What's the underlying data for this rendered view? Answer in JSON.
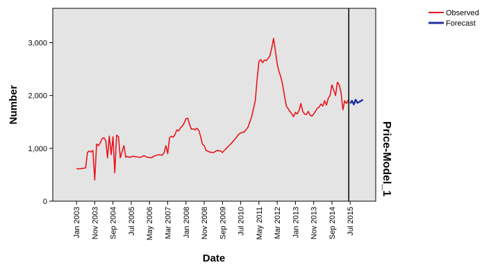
{
  "chart_data": {
    "type": "line",
    "xlabel": "Date",
    "ylabel": "Number",
    "panel_label": "Price-Model_1",
    "ylim": [
      0,
      3650
    ],
    "y_ticks": [
      {
        "value": 0,
        "label": "0"
      },
      {
        "value": 1000,
        "label": "1,000"
      },
      {
        "value": 2000,
        "label": "2,000"
      },
      {
        "value": 3000,
        "label": "3,000"
      }
    ],
    "x_ticks": [
      {
        "date": "2003-01",
        "label": "Jan 2003"
      },
      {
        "date": "2003-11",
        "label": "Nov 2003"
      },
      {
        "date": "2004-09",
        "label": "Sep 2004"
      },
      {
        "date": "2005-07",
        "label": "Jul 2005"
      },
      {
        "date": "2006-05",
        "label": "May 2006"
      },
      {
        "date": "2007-03",
        "label": "Mar 2007"
      },
      {
        "date": "2008-01",
        "label": "Jan 2008"
      },
      {
        "date": "2008-11",
        "label": "Nov 2008"
      },
      {
        "date": "2009-09",
        "label": "Sep 2009"
      },
      {
        "date": "2010-07",
        "label": "Jul 2010"
      },
      {
        "date": "2011-05",
        "label": "May 2011"
      },
      {
        "date": "2012-03",
        "label": "Mar 2012"
      },
      {
        "date": "2013-01",
        "label": "Jan 2013"
      },
      {
        "date": "2013-11",
        "label": "Nov 2013"
      },
      {
        "date": "2014-09",
        "label": "Sep 2014"
      },
      {
        "date": "2015-07",
        "label": "Jul 2015"
      }
    ],
    "xlim": [
      "2001-12",
      "2016-09"
    ],
    "forecast_start": "2015-07",
    "legend_position": "top-right",
    "plot_background": "#e4e4e4",
    "series": [
      {
        "name": "Observed",
        "color": "#e8141c",
        "points": [
          [
            "2003-01",
            620
          ],
          [
            "2003-02",
            610
          ],
          [
            "2003-04",
            620
          ],
          [
            "2003-06",
            630
          ],
          [
            "2003-07",
            920
          ],
          [
            "2003-08",
            950
          ],
          [
            "2003-09",
            930
          ],
          [
            "2003-10",
            960
          ],
          [
            "2003-11",
            400
          ],
          [
            "2003-12",
            1080
          ],
          [
            "2004-01",
            1050
          ],
          [
            "2004-02",
            1100
          ],
          [
            "2004-03",
            1180
          ],
          [
            "2004-04",
            1200
          ],
          [
            "2004-05",
            1150
          ],
          [
            "2004-06",
            820
          ],
          [
            "2004-07",
            1230
          ],
          [
            "2004-08",
            880
          ],
          [
            "2004-09",
            1220
          ],
          [
            "2004-10",
            540
          ],
          [
            "2004-11",
            1250
          ],
          [
            "2004-12",
            1220
          ],
          [
            "2005-01",
            820
          ],
          [
            "2005-02",
            940
          ],
          [
            "2005-03",
            1050
          ],
          [
            "2005-04",
            830
          ],
          [
            "2005-05",
            850
          ],
          [
            "2005-06",
            830
          ],
          [
            "2005-08",
            850
          ],
          [
            "2005-10",
            840
          ],
          [
            "2005-12",
            830
          ],
          [
            "2006-02",
            860
          ],
          [
            "2006-04",
            830
          ],
          [
            "2006-06",
            820
          ],
          [
            "2006-08",
            860
          ],
          [
            "2006-10",
            880
          ],
          [
            "2006-12",
            870
          ],
          [
            "2007-01",
            920
          ],
          [
            "2007-02",
            1050
          ],
          [
            "2007-03",
            900
          ],
          [
            "2007-04",
            1200
          ],
          [
            "2007-05",
            1230
          ],
          [
            "2007-06",
            1210
          ],
          [
            "2007-07",
            1260
          ],
          [
            "2007-08",
            1350
          ],
          [
            "2007-09",
            1330
          ],
          [
            "2007-10",
            1390
          ],
          [
            "2007-11",
            1420
          ],
          [
            "2007-12",
            1480
          ],
          [
            "2008-01",
            1560
          ],
          [
            "2008-02",
            1570
          ],
          [
            "2008-03",
            1450
          ],
          [
            "2008-04",
            1360
          ],
          [
            "2008-05",
            1370
          ],
          [
            "2008-06",
            1350
          ],
          [
            "2008-07",
            1380
          ],
          [
            "2008-08",
            1340
          ],
          [
            "2008-09",
            1230
          ],
          [
            "2008-10",
            1080
          ],
          [
            "2008-11",
            1050
          ],
          [
            "2008-12",
            960
          ],
          [
            "2009-02",
            930
          ],
          [
            "2009-04",
            920
          ],
          [
            "2009-06",
            960
          ],
          [
            "2009-08",
            950
          ],
          [
            "2009-09",
            920
          ],
          [
            "2009-10",
            960
          ],
          [
            "2009-12",
            1030
          ],
          [
            "2010-02",
            1100
          ],
          [
            "2010-04",
            1180
          ],
          [
            "2010-06",
            1270
          ],
          [
            "2010-07",
            1290
          ],
          [
            "2010-09",
            1310
          ],
          [
            "2010-11",
            1400
          ],
          [
            "2011-01",
            1600
          ],
          [
            "2011-03",
            1900
          ],
          [
            "2011-04",
            2300
          ],
          [
            "2011-05",
            2650
          ],
          [
            "2011-06",
            2680
          ],
          [
            "2011-07",
            2620
          ],
          [
            "2011-08",
            2670
          ],
          [
            "2011-09",
            2660
          ],
          [
            "2011-10",
            2700
          ],
          [
            "2011-11",
            2750
          ],
          [
            "2011-12",
            2900
          ],
          [
            "2012-01",
            3080
          ],
          [
            "2012-02",
            2850
          ],
          [
            "2012-03",
            2600
          ],
          [
            "2012-04",
            2450
          ],
          [
            "2012-05",
            2350
          ],
          [
            "2012-06",
            2200
          ],
          [
            "2012-07",
            2000
          ],
          [
            "2012-08",
            1800
          ],
          [
            "2012-09",
            1750
          ],
          [
            "2012-10",
            1700
          ],
          [
            "2012-11",
            1650
          ],
          [
            "2012-12",
            1600
          ],
          [
            "2013-01",
            1680
          ],
          [
            "2013-02",
            1650
          ],
          [
            "2013-03",
            1720
          ],
          [
            "2013-04",
            1850
          ],
          [
            "2013-05",
            1700
          ],
          [
            "2013-06",
            1650
          ],
          [
            "2013-07",
            1640
          ],
          [
            "2013-08",
            1700
          ],
          [
            "2013-09",
            1630
          ],
          [
            "2013-10",
            1610
          ],
          [
            "2013-11",
            1650
          ],
          [
            "2013-12",
            1700
          ],
          [
            "2014-01",
            1760
          ],
          [
            "2014-02",
            1780
          ],
          [
            "2014-03",
            1840
          ],
          [
            "2014-04",
            1800
          ],
          [
            "2014-05",
            1900
          ],
          [
            "2014-06",
            1820
          ],
          [
            "2014-07",
            1950
          ],
          [
            "2014-08",
            2000
          ],
          [
            "2014-09",
            2200
          ],
          [
            "2014-10",
            2100
          ],
          [
            "2014-11",
            2000
          ],
          [
            "2014-12",
            2250
          ],
          [
            "2015-01",
            2200
          ],
          [
            "2015-02",
            2050
          ],
          [
            "2015-03",
            1730
          ],
          [
            "2015-04",
            1900
          ],
          [
            "2015-05",
            1850
          ],
          [
            "2015-06",
            1920
          ]
        ]
      },
      {
        "name": "Forecast",
        "color": "#1f2fa0",
        "points": [
          [
            "2015-07",
            1850
          ],
          [
            "2015-08",
            1900
          ],
          [
            "2015-09",
            1830
          ],
          [
            "2015-10",
            1920
          ],
          [
            "2015-11",
            1860
          ],
          [
            "2015-12",
            1880
          ],
          [
            "2016-01",
            1900
          ],
          [
            "2016-02",
            1920
          ]
        ]
      }
    ]
  }
}
